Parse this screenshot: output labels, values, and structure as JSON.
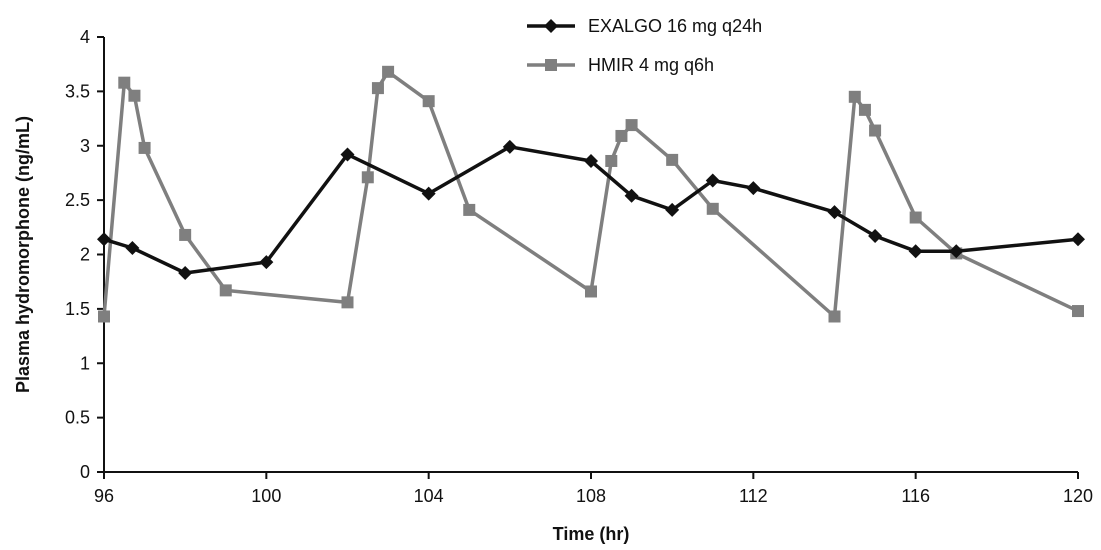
{
  "chart_data": {
    "type": "line",
    "title": "",
    "xlabel": "Time (hr)",
    "ylabel": "Plasma hydromorphone (ng/mL)",
    "xlim": [
      96,
      120
    ],
    "ylim": [
      0,
      4
    ],
    "xticks": [
      96,
      100,
      104,
      108,
      112,
      116,
      120
    ],
    "yticks": [
      0,
      0.5,
      1,
      1.5,
      2,
      2.5,
      3,
      3.5,
      4
    ],
    "grid": false,
    "legend_position": "top-right",
    "series": [
      {
        "name": "EXALGO 16 mg q24h",
        "color": "#111111",
        "marker": "diamond",
        "x": [
          96,
          96.7,
          98,
          100,
          102,
          104,
          106,
          108,
          109,
          110,
          111,
          112,
          114,
          115,
          116,
          117,
          120
        ],
        "y": [
          2.14,
          2.06,
          1.83,
          1.93,
          2.92,
          2.56,
          2.99,
          2.86,
          2.54,
          2.41,
          2.68,
          2.61,
          2.39,
          2.17,
          2.03,
          2.03,
          2.14
        ]
      },
      {
        "name": "HMIR 4 mg q6h",
        "color": "#7f7f7f",
        "marker": "square",
        "x": [
          96,
          96.5,
          96.75,
          97,
          98,
          99,
          102,
          102.5,
          102.75,
          103,
          104,
          105,
          108,
          108.5,
          108.75,
          109,
          110,
          111,
          114,
          114.5,
          114.75,
          115,
          116,
          117,
          120
        ],
        "y": [
          1.43,
          3.58,
          3.46,
          2.98,
          2.18,
          1.67,
          1.56,
          2.71,
          3.53,
          3.68,
          3.41,
          2.41,
          1.66,
          2.86,
          3.09,
          3.19,
          2.87,
          2.42,
          1.43,
          3.45,
          3.33,
          3.14,
          2.34,
          2.01,
          1.48
        ]
      }
    ]
  }
}
